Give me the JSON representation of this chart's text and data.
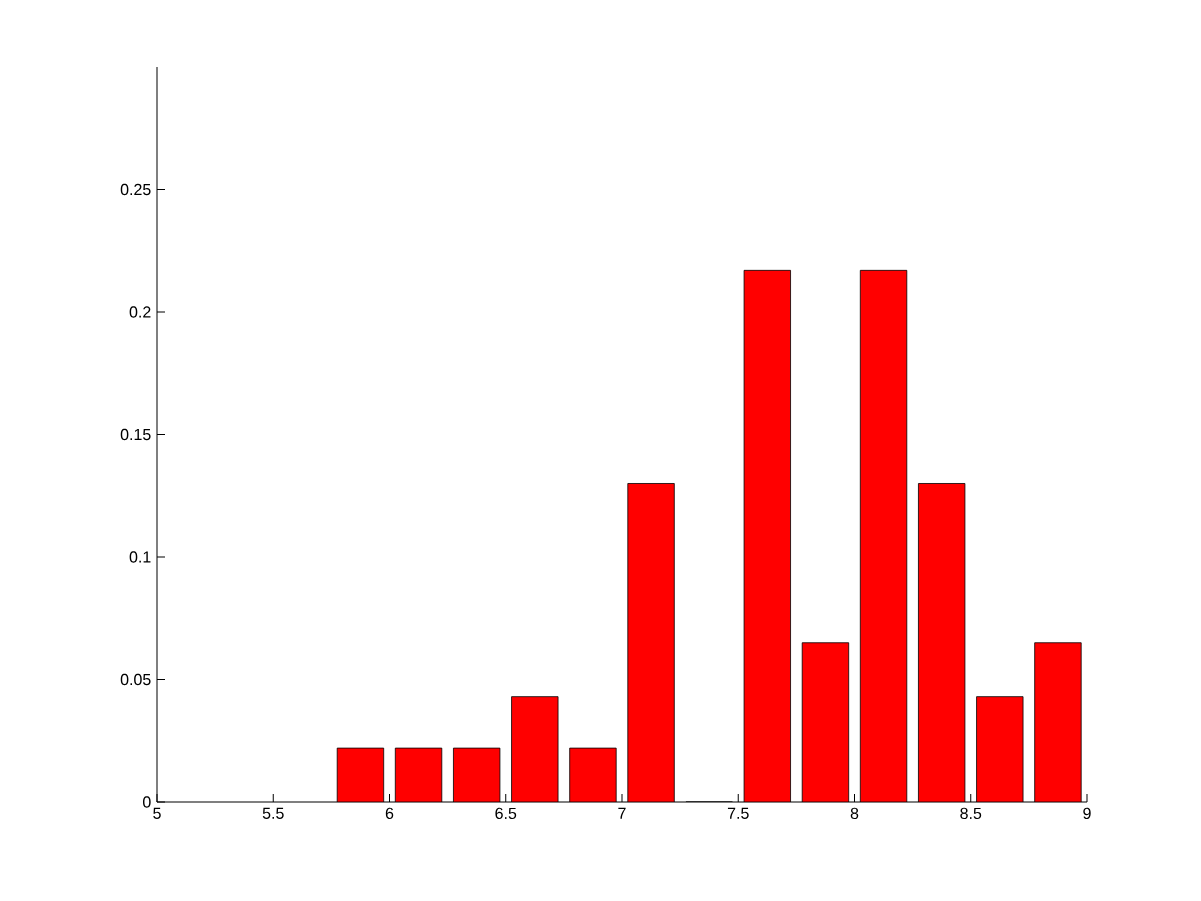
{
  "chart_data": {
    "type": "bar",
    "x": [
      5.875,
      6.125,
      6.375,
      6.625,
      6.875,
      7.125,
      7.375,
      7.625,
      7.875,
      8.125,
      8.375,
      8.625,
      8.875
    ],
    "values": [
      0.022,
      0.022,
      0.022,
      0.043,
      0.022,
      0.13,
      0,
      0.217,
      0.065,
      0.217,
      0.13,
      0.043,
      0.065
    ],
    "color": "#ff0000",
    "xlim": [
      5,
      9
    ],
    "ylim": [
      0,
      0.3
    ],
    "xticks": [
      5,
      5.5,
      6,
      6.5,
      7,
      7.5,
      8,
      8.5,
      9
    ],
    "yticks": [
      0,
      0.05,
      0.1,
      0.15,
      0.2,
      0.25
    ]
  }
}
